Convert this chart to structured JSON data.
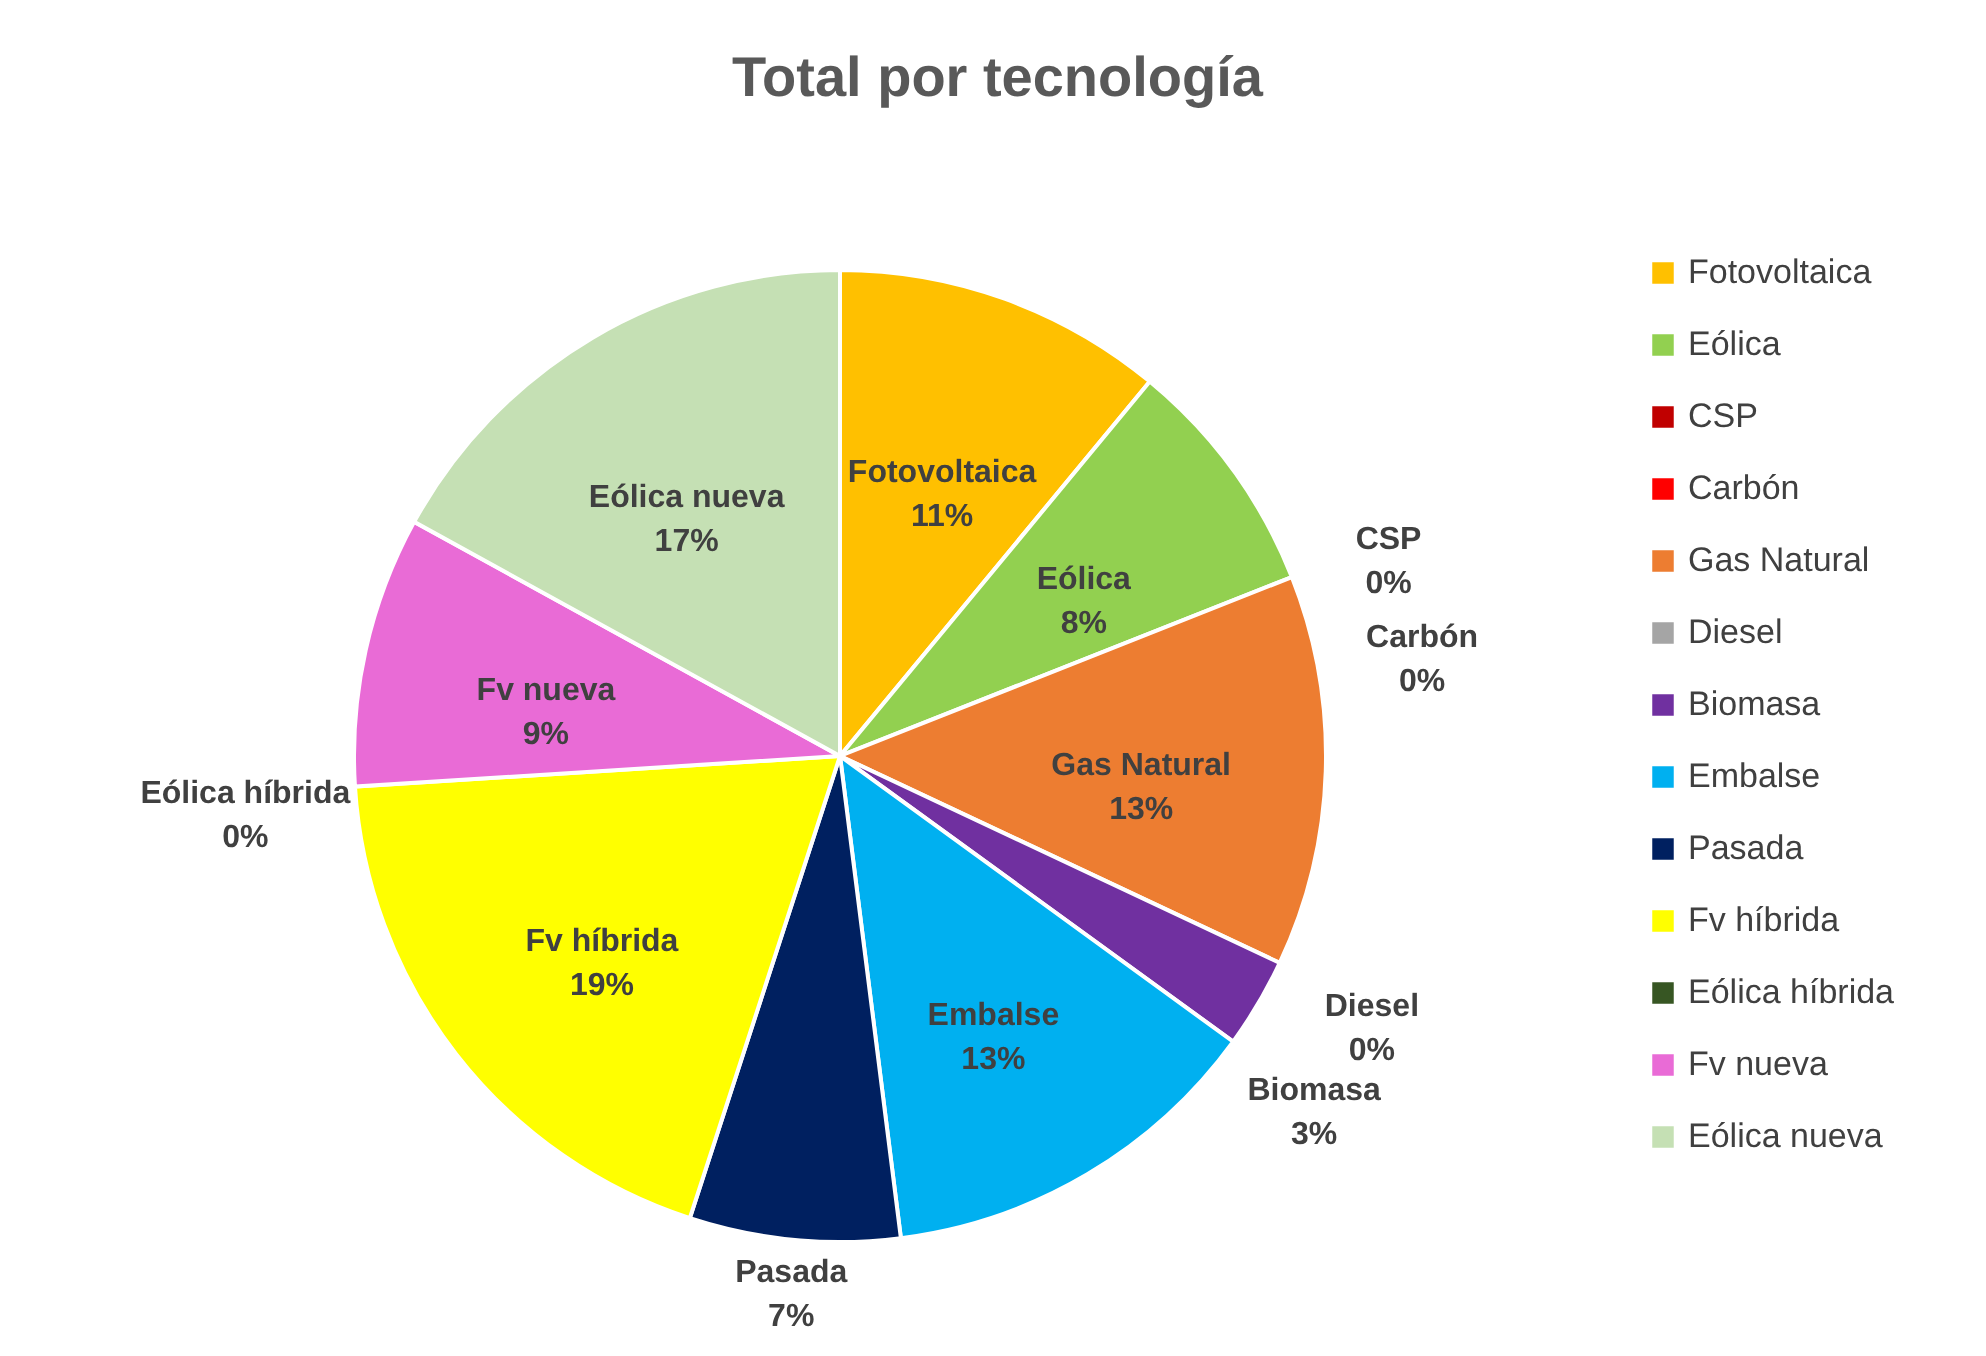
{
  "chart_data": {
    "type": "pie",
    "title": "Total por tecnología",
    "categories": [
      "Fotovoltaica",
      "Eólica",
      "CSP",
      "Carbón",
      "Gas Natural",
      "Diesel",
      "Biomasa",
      "Embalse",
      "Pasada",
      "Fv híbrida",
      "Eólica híbrida",
      "Fv nueva",
      "Eólica nueva"
    ],
    "values": [
      11,
      8,
      0,
      0,
      13,
      0,
      3,
      13,
      7,
      19,
      0,
      9,
      17
    ],
    "value_labels": [
      "11%",
      "8%",
      "0%",
      "0%",
      "13%",
      "0%",
      "3%",
      "13%",
      "7%",
      "19%",
      "0%",
      "9%",
      "17%"
    ],
    "colors": [
      "#ffc000",
      "#92d050",
      "#c00000",
      "#ff0000",
      "#ed7d31",
      "#a5a5a5",
      "#7030a0",
      "#00b0f0",
      "#002060",
      "#ffff00",
      "#375623",
      "#e96bd6",
      "#c5e0b4"
    ],
    "legend": "right"
  }
}
